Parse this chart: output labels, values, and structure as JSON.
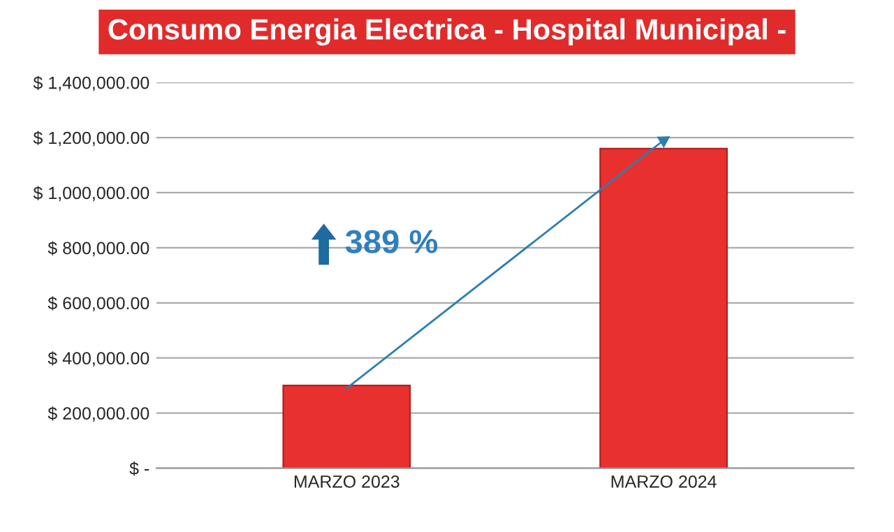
{
  "chart_data": {
    "type": "bar",
    "title": "Consumo Energia Electrica - Hospital Municipal -",
    "categories": [
      "MARZO 2023",
      "MARZO 2024"
    ],
    "series": [
      {
        "color": "#e8302f",
        "values": [
          300000,
          1160000
        ]
      },
      {
        "type": "line",
        "color": "#2b7fb0",
        "values": [
          290000,
          1190000
        ]
      }
    ],
    "ylim": [
      0,
      1400000
    ],
    "yticks": [
      {
        "value": 0,
        "label": "$ -"
      },
      {
        "value": 200000,
        "label": "$ 200,000.00"
      },
      {
        "value": 400000,
        "label": "$ 400,000.00"
      },
      {
        "value": 600000,
        "label": "$ 600,000.00"
      },
      {
        "value": 800000,
        "label": "$ 800,000.00"
      },
      {
        "value": 1000000,
        "label": "$ 1,000,000.00"
      },
      {
        "value": 1200000,
        "label": "$ 1,200,000.00"
      },
      {
        "value": 1400000,
        "label": "$ 1,400,000.00"
      }
    ],
    "grid": "y",
    "annotations": [
      "389 %"
    ]
  }
}
